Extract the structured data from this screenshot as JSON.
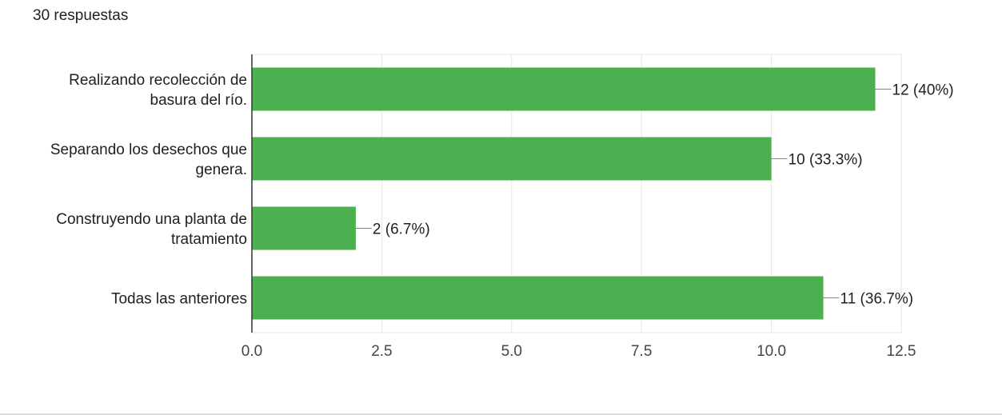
{
  "header": {
    "response_count": "30 respuestas"
  },
  "chart_data": {
    "type": "bar",
    "orientation": "horizontal",
    "categories": [
      [
        "Realizando recolección de",
        "basura del río."
      ],
      [
        "Separando los desechos que",
        "genera."
      ],
      [
        "Construyendo una planta de",
        "tratamiento"
      ],
      [
        "Todas las anteriores"
      ]
    ],
    "values": [
      12,
      10,
      2,
      11
    ],
    "data_labels": [
      "12 (40%)",
      "10 (33.3%)",
      "2 (6.7%)",
      "11 (36.7%)"
    ],
    "xlim": [
      0,
      12.5
    ],
    "x_ticks": [
      "0.0",
      "2.5",
      "5.0",
      "7.5",
      "10.0",
      "12.5"
    ],
    "x_tick_values": [
      0,
      2.5,
      5,
      7.5,
      10,
      12.5
    ],
    "grid": true,
    "colors": {
      "bar": "#4caf50",
      "grid": "#e6e6e6",
      "axis": "#333333",
      "text": "#212121",
      "tick_text": "#444444"
    }
  }
}
